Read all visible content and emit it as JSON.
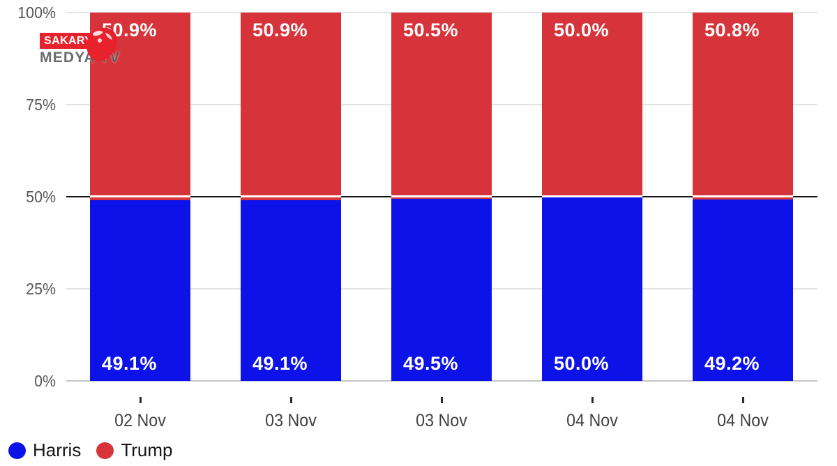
{
  "watermark": {
    "line1": "SAKARYA",
    "line2": "MEDYA TV"
  },
  "chart_data": {
    "type": "bar",
    "stacked": true,
    "title": "",
    "categories": [
      "02 Nov",
      "03 Nov",
      "03 Nov",
      "04 Nov",
      "04 Nov"
    ],
    "series": [
      {
        "name": "Harris",
        "color": "#0d13e8",
        "values": [
          49.1,
          49.1,
          49.5,
          50.0,
          49.2
        ]
      },
      {
        "name": "Trump",
        "color": "#d6333a",
        "values": [
          50.9,
          50.9,
          50.5,
          50.0,
          50.8
        ]
      }
    ],
    "bar_labels": {
      "trump": [
        "50.9%",
        "50.9%",
        "50.5%",
        "50.0%",
        "50.8%"
      ],
      "harris": [
        "49.1%",
        "49.1%",
        "49.5%",
        "50.0%",
        "49.2%"
      ]
    },
    "yaxis": {
      "ticks": [
        "100%",
        "75%",
        "50%",
        "25%",
        "0%"
      ],
      "range": [
        0,
        100
      ],
      "reference_line": "50%"
    },
    "legend": [
      {
        "label": "Harris",
        "color": "#0d13e8"
      },
      {
        "label": "Trump",
        "color": "#d6333a"
      }
    ],
    "grid": true,
    "legend_position": "bottom-left"
  }
}
